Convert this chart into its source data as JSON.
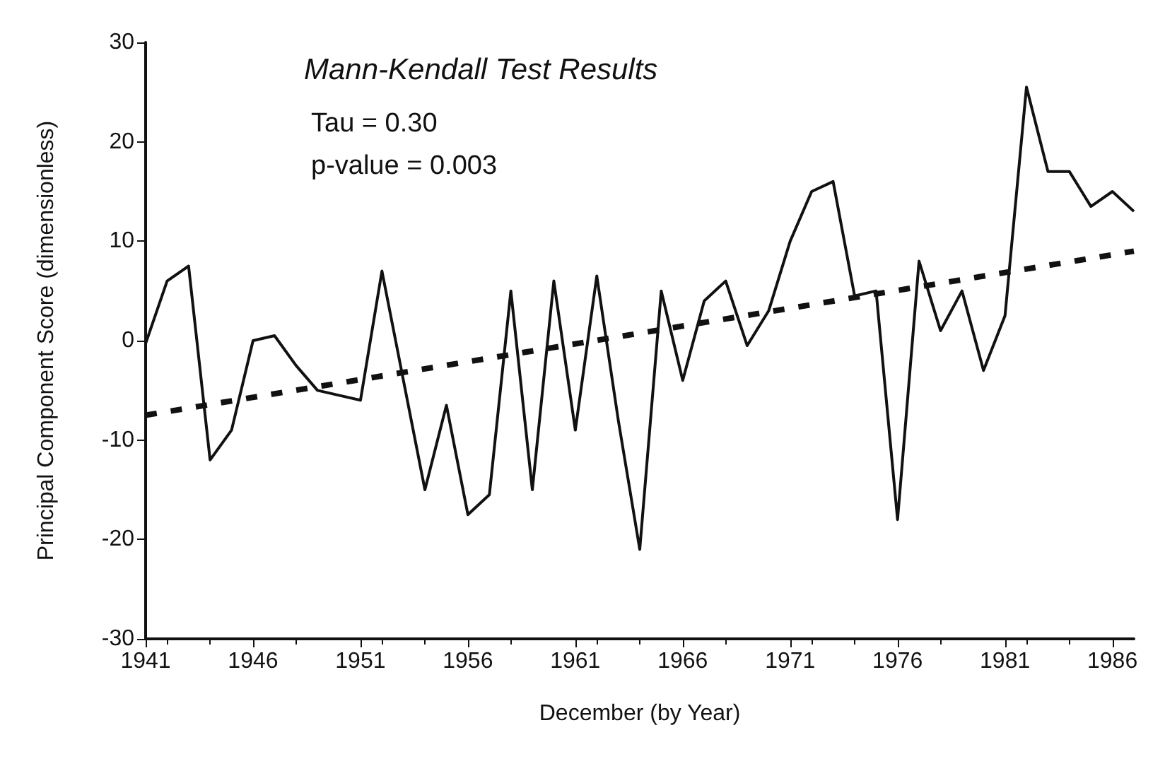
{
  "chart_data": {
    "type": "line",
    "title": "Mann-Kendall Test Results",
    "annotations": [
      "Tau = 0.30",
      "p-value = 0.003"
    ],
    "xlabel": "December (by Year)",
    "ylabel": "Principal Component Score (dimensionless)",
    "series": [
      {
        "color": "#111111",
        "line_style": "solid",
        "x": [
          1941,
          1942,
          1943,
          1944,
          1945,
          1946,
          1947,
          1948,
          1949,
          1950,
          1951,
          1952,
          1953,
          1954,
          1955,
          1956,
          1957,
          1958,
          1959,
          1960,
          1961,
          1962,
          1963,
          1964,
          1965,
          1966,
          1967,
          1968,
          1969,
          1970,
          1971,
          1972,
          1973,
          1974,
          1975,
          1976,
          1977,
          1978,
          1979,
          1980,
          1981,
          1982,
          1983,
          1984,
          1985,
          1986,
          1987
        ],
        "values": [
          -0.3,
          6,
          7.5,
          -12,
          -9,
          0,
          0.5,
          -2.5,
          -5,
          -5.5,
          -6,
          7,
          -4,
          -15,
          -6.5,
          -17.5,
          -15.5,
          5,
          -15,
          6,
          -9,
          6.5,
          -8,
          -21,
          5,
          -4,
          4,
          6,
          -0.5,
          3,
          10,
          15,
          16,
          4.5,
          5,
          -18,
          8,
          1,
          5,
          -3,
          2.5,
          25.5,
          17,
          17,
          13.5,
          15,
          13
        ]
      },
      {
        "color": "#111111",
        "line_style": "dashed",
        "x": [
          1941,
          1987
        ],
        "values": [
          -7.5,
          9
        ]
      }
    ],
    "marker": "none",
    "xlim": [
      1941,
      1987
    ],
    "xticks": [
      1941,
      1946,
      1951,
      1956,
      1961,
      1966,
      1971,
      1976,
      1981,
      1986
    ],
    "ylim": [
      -30,
      30
    ],
    "yticks": [
      -30,
      -20,
      -10,
      0,
      10,
      20,
      30
    ],
    "grid": false
  }
}
